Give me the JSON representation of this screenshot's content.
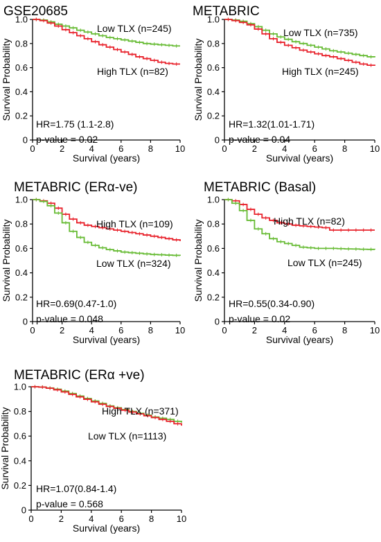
{
  "chart_data": [
    {
      "type": "line",
      "title": "GSE20685",
      "xlabel": "Survival (years)",
      "ylabel": "Survival Probability",
      "xlim": [
        0,
        10
      ],
      "ylim": [
        0,
        1
      ],
      "xticks": [
        "0",
        "2",
        "4",
        "6",
        "8",
        "10"
      ],
      "yticks": [
        "0",
        "0.2",
        "0.4",
        "0.6",
        "0.8",
        "1.0"
      ],
      "series": [
        {
          "name": "Low TLX (n=245)",
          "color": "#66bb33",
          "x": [
            0,
            0.5,
            1,
            1.5,
            2,
            2.5,
            3,
            3.5,
            4,
            4.5,
            5,
            5.5,
            6,
            6.5,
            7,
            7.5,
            8,
            8.5,
            9,
            9.5,
            10
          ],
          "y": [
            1.0,
            0.995,
            0.98,
            0.96,
            0.945,
            0.93,
            0.91,
            0.895,
            0.88,
            0.865,
            0.85,
            0.84,
            0.83,
            0.82,
            0.81,
            0.8,
            0.795,
            0.79,
            0.785,
            0.78,
            0.78
          ]
        },
        {
          "name": "High TLX (n=82)",
          "color": "#e8202a",
          "x": [
            0,
            0.5,
            1,
            1.5,
            2,
            2.5,
            3,
            3.5,
            4,
            4.5,
            5,
            5.5,
            6,
            6.5,
            7,
            7.5,
            8,
            8.5,
            9,
            9.5,
            10
          ],
          "y": [
            1.0,
            0.99,
            0.97,
            0.945,
            0.915,
            0.89,
            0.865,
            0.84,
            0.815,
            0.79,
            0.77,
            0.75,
            0.73,
            0.71,
            0.69,
            0.675,
            0.66,
            0.645,
            0.635,
            0.63,
            0.63
          ]
        }
      ],
      "annotations": [
        "HR=1.75 (1.1-2.8)",
        "p-value = 0.02"
      ]
    },
    {
      "type": "line",
      "title": "METABRIC",
      "xlabel": "Survival (years)",
      "ylabel": "Survival Probability",
      "xlim": [
        0,
        10
      ],
      "ylim": [
        0,
        1
      ],
      "xticks": [
        "0",
        "2",
        "4",
        "6",
        "8",
        "10"
      ],
      "yticks": [
        "0",
        "0.2",
        "0.4",
        "0.6",
        "0.8",
        "1.0"
      ],
      "series": [
        {
          "name": "Low TLX (n=735)",
          "color": "#66bb33",
          "x": [
            0,
            0.5,
            1,
            1.5,
            2,
            2.5,
            3,
            3.5,
            4,
            4.5,
            5,
            5.5,
            6,
            6.5,
            7,
            7.5,
            8,
            8.5,
            9,
            9.5,
            10
          ],
          "y": [
            1.0,
            0.995,
            0.985,
            0.965,
            0.94,
            0.91,
            0.88,
            0.855,
            0.835,
            0.815,
            0.8,
            0.785,
            0.77,
            0.755,
            0.74,
            0.73,
            0.72,
            0.71,
            0.7,
            0.69,
            0.685
          ]
        },
        {
          "name": "High TLX (n=245)",
          "color": "#e8202a",
          "x": [
            0,
            0.5,
            1,
            1.5,
            2,
            2.5,
            3,
            3.5,
            4,
            4.5,
            5,
            5.5,
            6,
            6.5,
            7,
            7.5,
            8,
            8.5,
            9,
            9.5,
            10
          ],
          "y": [
            1.0,
            0.99,
            0.975,
            0.955,
            0.92,
            0.88,
            0.84,
            0.81,
            0.785,
            0.765,
            0.745,
            0.73,
            0.715,
            0.7,
            0.69,
            0.675,
            0.66,
            0.645,
            0.63,
            0.62,
            0.615
          ]
        }
      ],
      "annotations": [
        "HR=1.32(1.01-1.71)",
        "p-value = 0.04"
      ]
    },
    {
      "type": "line",
      "title": "METABRIC (ERα-ve)",
      "xlabel": "Survival (years)",
      "ylabel": "Survival Probability",
      "xlim": [
        0,
        10
      ],
      "ylim": [
        0,
        1
      ],
      "xticks": [
        "0",
        "2",
        "4",
        "6",
        "8",
        "10"
      ],
      "yticks": [
        "0",
        "0.2",
        "0.4",
        "0.6",
        "0.8",
        "1.0"
      ],
      "series": [
        {
          "name": "High TLX (n=109)",
          "color": "#e8202a",
          "x": [
            0,
            0.5,
            1,
            1.5,
            2,
            2.5,
            3,
            3.5,
            4,
            4.5,
            5,
            5.5,
            6,
            6.5,
            7,
            7.5,
            8,
            8.5,
            9,
            9.5,
            10
          ],
          "y": [
            1.0,
            0.99,
            0.97,
            0.93,
            0.88,
            0.84,
            0.81,
            0.79,
            0.78,
            0.77,
            0.76,
            0.75,
            0.74,
            0.73,
            0.72,
            0.71,
            0.7,
            0.69,
            0.68,
            0.67,
            0.66
          ]
        },
        {
          "name": "Low TLX (n=324)",
          "color": "#66bb33",
          "x": [
            0,
            0.5,
            1,
            1.5,
            2,
            2.5,
            3,
            3.5,
            4,
            4.5,
            5,
            5.5,
            6,
            6.5,
            7,
            7.5,
            8,
            8.5,
            9,
            9.5,
            10
          ],
          "y": [
            1.0,
            0.985,
            0.95,
            0.89,
            0.81,
            0.74,
            0.69,
            0.65,
            0.625,
            0.605,
            0.59,
            0.58,
            0.57,
            0.565,
            0.56,
            0.555,
            0.55,
            0.548,
            0.545,
            0.543,
            0.54
          ]
        }
      ],
      "annotations": [
        "HR=0.69(0.47-1.0)",
        "p-value = 0.048"
      ]
    },
    {
      "type": "line",
      "title": "METABRIC (Basal)",
      "xlabel": "Survival (years)",
      "ylabel": "Survival Probability",
      "xlim": [
        0,
        10
      ],
      "ylim": [
        0,
        1
      ],
      "xticks": [
        "0",
        "2",
        "4",
        "6",
        "8",
        "10"
      ],
      "yticks": [
        "0",
        "0.2",
        "0.4",
        "0.6",
        "0.8",
        "1.0"
      ],
      "series": [
        {
          "name": "High TLX (n=82)",
          "color": "#e8202a",
          "x": [
            0,
            0.5,
            1,
            1.5,
            2,
            2.5,
            3,
            3.5,
            4,
            4.5,
            5,
            5.5,
            6,
            6.5,
            7,
            7.5,
            8,
            8.5,
            9,
            9.5,
            10
          ],
          "y": [
            1.0,
            0.99,
            0.96,
            0.92,
            0.88,
            0.85,
            0.83,
            0.81,
            0.8,
            0.79,
            0.785,
            0.78,
            0.775,
            0.77,
            0.75,
            0.75,
            0.75,
            0.75,
            0.75,
            0.75,
            0.75
          ]
        },
        {
          "name": "Low TLX (n=245)",
          "color": "#66bb33",
          "x": [
            0,
            0.5,
            1,
            1.5,
            2,
            2.5,
            3,
            3.5,
            4,
            4.5,
            5,
            5.5,
            6,
            6.5,
            7,
            7.5,
            8,
            8.5,
            9,
            9.5,
            10
          ],
          "y": [
            1.0,
            0.97,
            0.91,
            0.83,
            0.76,
            0.72,
            0.68,
            0.655,
            0.64,
            0.625,
            0.61,
            0.605,
            0.6,
            0.6,
            0.6,
            0.598,
            0.596,
            0.595,
            0.593,
            0.592,
            0.59
          ]
        }
      ],
      "annotations": [
        "HR=0.55(0.34-0.90)",
        "p-value = 0.02"
      ]
    },
    {
      "type": "line",
      "title": "METABRIC (ERα +ve)",
      "xlabel": "Survival (years)",
      "ylabel": "Survival Probability",
      "xlim": [
        0,
        10
      ],
      "ylim": [
        0,
        1
      ],
      "xticks": [
        "0",
        "2",
        "4",
        "6",
        "8",
        "10"
      ],
      "yticks": [
        "0",
        "0.2",
        "0.4",
        "0.6",
        "0.8",
        "1.0"
      ],
      "series": [
        {
          "name": "Low TLX (n=1113)",
          "color": "#66bb33",
          "x": [
            0,
            0.5,
            1,
            1.5,
            2,
            2.5,
            3,
            3.5,
            4,
            4.5,
            5,
            5.5,
            6,
            6.5,
            7,
            7.5,
            8,
            8.5,
            9,
            9.5,
            10
          ],
          "y": [
            1.0,
            0.998,
            0.99,
            0.98,
            0.965,
            0.945,
            0.925,
            0.905,
            0.885,
            0.865,
            0.845,
            0.83,
            0.815,
            0.8,
            0.785,
            0.77,
            0.755,
            0.745,
            0.735,
            0.72,
            0.71
          ]
        },
        {
          "name": "High TLX (n=371)",
          "color": "#e8202a",
          "x": [
            0,
            0.5,
            1,
            1.5,
            2,
            2.5,
            3,
            3.5,
            4,
            4.5,
            5,
            5.5,
            6,
            6.5,
            7,
            7.5,
            8,
            8.5,
            9,
            9.5,
            10
          ],
          "y": [
            1.0,
            0.997,
            0.988,
            0.975,
            0.958,
            0.938,
            0.918,
            0.898,
            0.878,
            0.858,
            0.84,
            0.825,
            0.81,
            0.795,
            0.78,
            0.765,
            0.75,
            0.735,
            0.72,
            0.7,
            0.685
          ]
        }
      ],
      "annotations": [
        "HR=1.07(0.84-1.4)",
        "p-value = 0.568"
      ]
    }
  ]
}
